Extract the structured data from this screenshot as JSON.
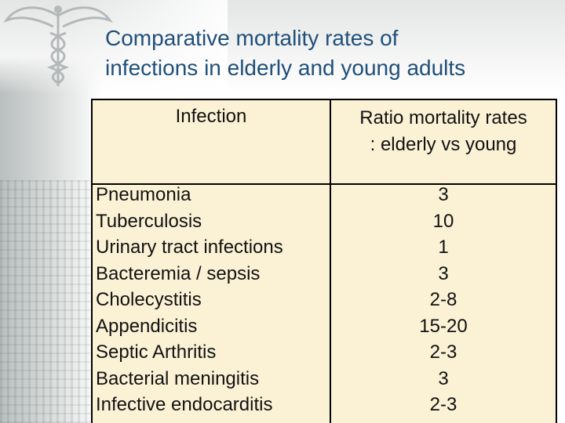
{
  "title": {
    "line1": "Comparative mortality rates of",
    "line2": "infections in elderly and young adults"
  },
  "table": {
    "header_infection": "Infection",
    "header_ratio_line1": "Ratio mortality rates",
    "header_ratio_line2": ": elderly vs young",
    "rows": [
      {
        "infection": "Pneumonia",
        "ratio": "3"
      },
      {
        "infection": "Tuberculosis",
        "ratio": "10"
      },
      {
        "infection": "Urinary tract infections",
        "ratio": "1"
      },
      {
        "infection": "Bacteremia / sepsis",
        "ratio": "3"
      },
      {
        "infection": "Cholecystitis",
        "ratio": "2-8"
      },
      {
        "infection": "Appendicitis",
        "ratio": "15-20"
      },
      {
        "infection": "Septic Arthritis",
        "ratio": "2-3"
      },
      {
        "infection": "Bacterial meningitis",
        "ratio": "3"
      },
      {
        "infection": "Infective endocarditis",
        "ratio": "2-3"
      }
    ]
  },
  "decor": {
    "icon": "caduceus-icon",
    "title_color": "#1f4f7a",
    "table_fill": "#fbf2d6"
  }
}
